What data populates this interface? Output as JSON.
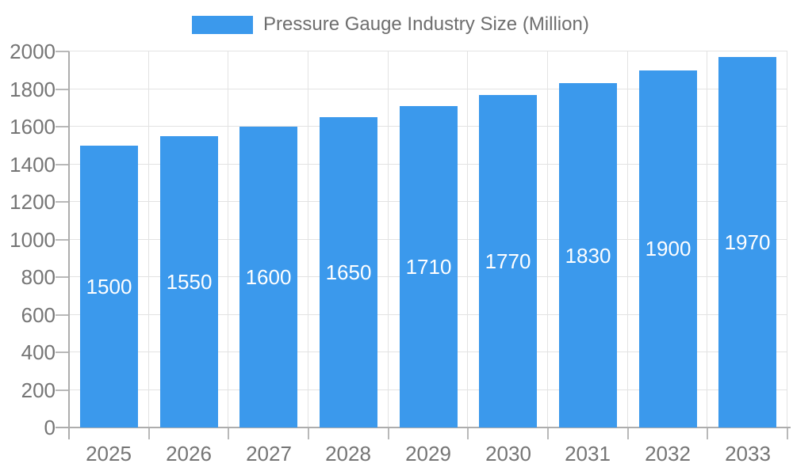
{
  "legend": {
    "label": "Pressure Gauge Industry Size (Million)"
  },
  "chart_data": {
    "type": "bar",
    "title": "Pressure Gauge Industry Size (Million)",
    "categories": [
      "2025",
      "2026",
      "2027",
      "2028",
      "2029",
      "2030",
      "2031",
      "2032",
      "2033"
    ],
    "series": [
      {
        "name": "Pressure Gauge Industry Size (Million)",
        "values": [
          1500,
          1550,
          1600,
          1650,
          1710,
          1770,
          1830,
          1900,
          1970
        ]
      }
    ],
    "values": [
      1500,
      1550,
      1600,
      1650,
      1710,
      1770,
      1830,
      1900,
      1970
    ],
    "bar_labels": [
      "1500",
      "1550",
      "1600",
      "1650",
      "1710",
      "1770",
      "1830",
      "1900",
      "1970"
    ],
    "xlabel": "",
    "ylabel": "",
    "ylim": [
      0,
      2000
    ],
    "ytick_step": 200,
    "yticks": [
      0,
      200,
      400,
      600,
      800,
      1000,
      1200,
      1400,
      1600,
      1800,
      2000
    ],
    "grid": true,
    "legend_position": "top",
    "colors": {
      "bar": "#3B99EC",
      "bar_label": "#FFFFFF",
      "axis_text": "#757575",
      "legend_text": "#6E6E6E",
      "axis_line": "#ADADAD",
      "grid_line": "#E3E3E3",
      "tick": "#B9B9B9"
    }
  }
}
